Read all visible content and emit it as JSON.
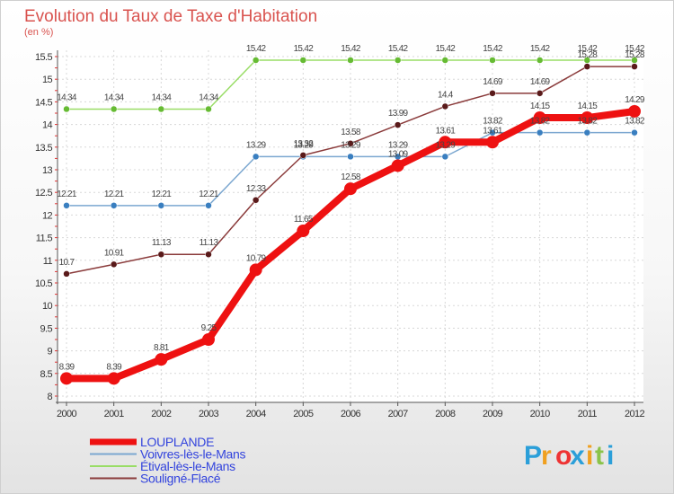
{
  "chart_data": {
    "type": "line",
    "title": "Evolution du Taux de Taxe d'Habitation",
    "subtitle": "(en %)",
    "x": [
      "2000",
      "2001",
      "2002",
      "2003",
      "2004",
      "2005",
      "2006",
      "2007",
      "2008",
      "2009",
      "2010",
      "2011",
      "2012"
    ],
    "ylim": [
      8,
      15.5
    ],
    "yticks": [
      "8",
      "8.5",
      "9",
      "9.5",
      "10",
      "10.5",
      "11",
      "11.5",
      "12",
      "12.5",
      "13",
      "13.5",
      "14",
      "14.5",
      "15",
      "15.5"
    ],
    "grid": true,
    "legend_position": "bottom-left",
    "series": [
      {
        "name": "LOUPLANDE",
        "color": "#ee1111",
        "marker": "#ee1111",
        "width": 8,
        "markerRadius": 7,
        "values": [
          8.39,
          8.39,
          8.81,
          9.25,
          10.79,
          11.65,
          12.58,
          13.09,
          13.61,
          13.61,
          14.15,
          14.15,
          14.29
        ],
        "labels": [
          "8.39",
          "8.39",
          "8.81",
          "9.25",
          "10.79",
          "11.65",
          "12.58",
          "13.09",
          "13.61",
          "13.61",
          "14.15",
          "14.15",
          "14.29"
        ]
      },
      {
        "name": "Voivres-lès-le-Mans",
        "color": "#7ba7d0",
        "marker": "#3a7fc0",
        "width": 1.5,
        "markerRadius": 3.5,
        "values": [
          12.21,
          12.21,
          12.21,
          12.21,
          13.29,
          13.29,
          13.29,
          13.29,
          13.29,
          13.82,
          13.82,
          13.82,
          13.82
        ],
        "labels": [
          "12.21",
          "12.21",
          "12.21",
          "12.21",
          "13.29",
          "13.29",
          "13.29",
          "13.29",
          "13.29",
          "13.82",
          "13.82",
          "13.82",
          "13.82"
        ]
      },
      {
        "name": "Étival-lès-le-Mans",
        "color": "#99dd66",
        "marker": "#66bb33",
        "width": 1.5,
        "markerRadius": 3.5,
        "values": [
          14.34,
          14.34,
          14.34,
          14.34,
          15.42,
          15.42,
          15.42,
          15.42,
          15.42,
          15.42,
          15.42,
          15.42,
          15.42
        ],
        "labels": [
          "14.34",
          "14.34",
          "14.34",
          "14.34",
          "15.42",
          "15.42",
          "15.42",
          "15.42",
          "15.42",
          "15.42",
          "15.42",
          "15.42",
          "15.42"
        ]
      },
      {
        "name": "Souligné-Flacé",
        "color": "#8a3a3a",
        "marker": "#5a1a1a",
        "width": 1.5,
        "markerRadius": 3.5,
        "values": [
          10.7,
          10.91,
          11.13,
          11.13,
          12.33,
          13.32,
          13.58,
          13.99,
          14.4,
          14.69,
          14.69,
          15.28,
          15.28
        ],
        "labels": [
          "10.7",
          "10.91",
          "11.13",
          "11.13",
          "12.33",
          "13.32",
          "13.58",
          "13.99",
          "14.4",
          "14.69",
          "14.69",
          "15.28",
          "15.28"
        ]
      }
    ]
  },
  "logo": {
    "letters": [
      "P",
      "r",
      "o",
      "x",
      "i",
      "t",
      "i"
    ],
    "colors": [
      "#2b9fd9",
      "#f0a020",
      "#ee3333",
      "#2b9fd9",
      "#f0a020",
      "#8bc34a",
      "#2b9fd9"
    ]
  }
}
